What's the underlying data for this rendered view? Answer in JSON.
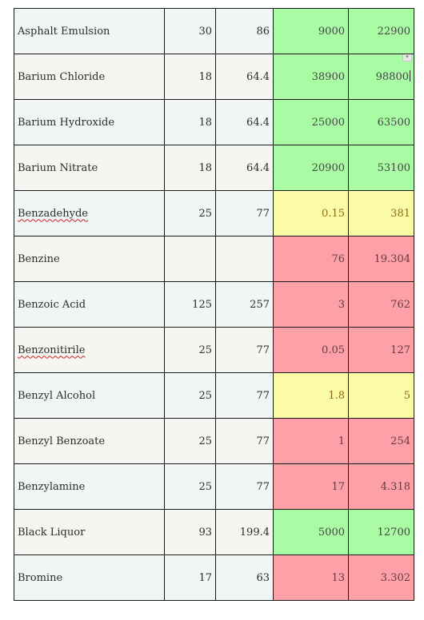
{
  "table": {
    "rows": [
      {
        "name": "Asphalt Emulsion",
        "c": "30",
        "f": "86",
        "v1": "9000",
        "v2": "22900",
        "color": "green"
      },
      {
        "name": "Barium Chloride",
        "c": "18",
        "f": "64.4",
        "v1": "38900",
        "v2": "98800",
        "color": "green"
      },
      {
        "name": "Barium Hydroxide",
        "c": "18",
        "f": "64.4",
        "v1": "25000",
        "v2": "63500",
        "color": "green"
      },
      {
        "name": "Barium Nitrate",
        "c": "18",
        "f": "64.4",
        "v1": "20900",
        "v2": "53100",
        "color": "green"
      },
      {
        "name": "Benzadehyde",
        "c": "25",
        "f": "77",
        "v1": "0.15",
        "v2": "381",
        "color": "yellow"
      },
      {
        "name": "Benzine",
        "c": "",
        "f": "",
        "v1": "76",
        "v2": "19.304",
        "color": "red"
      },
      {
        "name": "Benzoic Acid",
        "c": "125",
        "f": "257",
        "v1": "3",
        "v2": "762",
        "color": "red"
      },
      {
        "name": "Benzonitirile",
        "c": "25",
        "f": "77",
        "v1": "0.05",
        "v2": "127",
        "color": "red"
      },
      {
        "name": "Benzyl Alcohol",
        "c": "25",
        "f": "77",
        "v1": "1.8",
        "v2": "5",
        "color": "yellow"
      },
      {
        "name": "Benzyl Benzoate",
        "c": "25",
        "f": "77",
        "v1": "1",
        "v2": "254",
        "color": "red"
      },
      {
        "name": "Benzylamine",
        "c": "25",
        "f": "77",
        "v1": "17",
        "v2": "4.318",
        "color": "red"
      },
      {
        "name": "Black Liquor",
        "c": "93",
        "f": "199.4",
        "v1": "5000",
        "v2": "12700",
        "color": "green"
      },
      {
        "name": "Bromine",
        "c": "17",
        "f": "63",
        "v1": "13",
        "v2": "3.302",
        "color": "red"
      }
    ]
  },
  "colors": {
    "green": "#a9fca4",
    "yellow": "#fbfba6",
    "red": "#fda0a8"
  }
}
